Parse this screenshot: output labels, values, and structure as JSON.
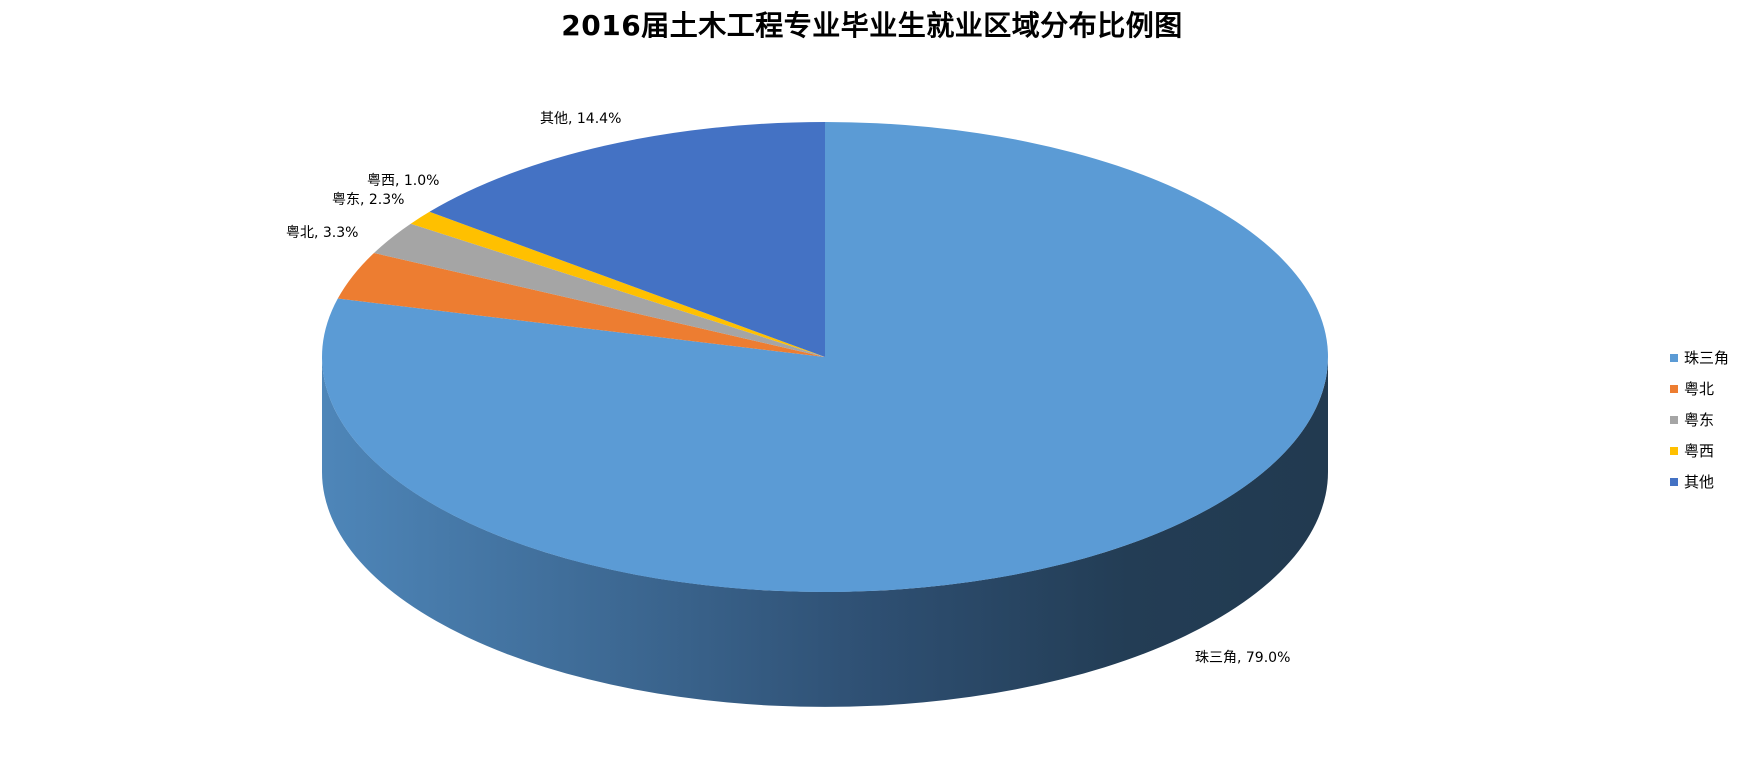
{
  "chart_data": {
    "type": "pie",
    "title": "2016届土木工程专业毕业生就业区域分布比例图",
    "three_d": true,
    "legend_position": "right",
    "data_label_format": "category, value%",
    "series": [
      {
        "values": [
          79.0,
          3.3,
          2.3,
          1.0,
          14.4
        ],
        "categories": [
          "珠三角",
          "粤北",
          "粤东",
          "粤西",
          "其他"
        ]
      }
    ],
    "slices": [
      {
        "label": "珠三角",
        "value": 79.0,
        "data_label": "珠三角, 79.0%",
        "color": "#5B9BD5"
      },
      {
        "label": "粤北",
        "value": 3.3,
        "data_label": "粤北, 3.3%",
        "color": "#ED7D31"
      },
      {
        "label": "粤东",
        "value": 2.3,
        "data_label": "粤东, 2.3%",
        "color": "#A5A5A5"
      },
      {
        "label": "粤西",
        "value": 1.0,
        "data_label": "粤西, 1.0%",
        "color": "#FFC000"
      },
      {
        "label": "其他",
        "value": 14.4,
        "data_label": "其他, 14.4%",
        "color": "#4472C4"
      }
    ]
  }
}
